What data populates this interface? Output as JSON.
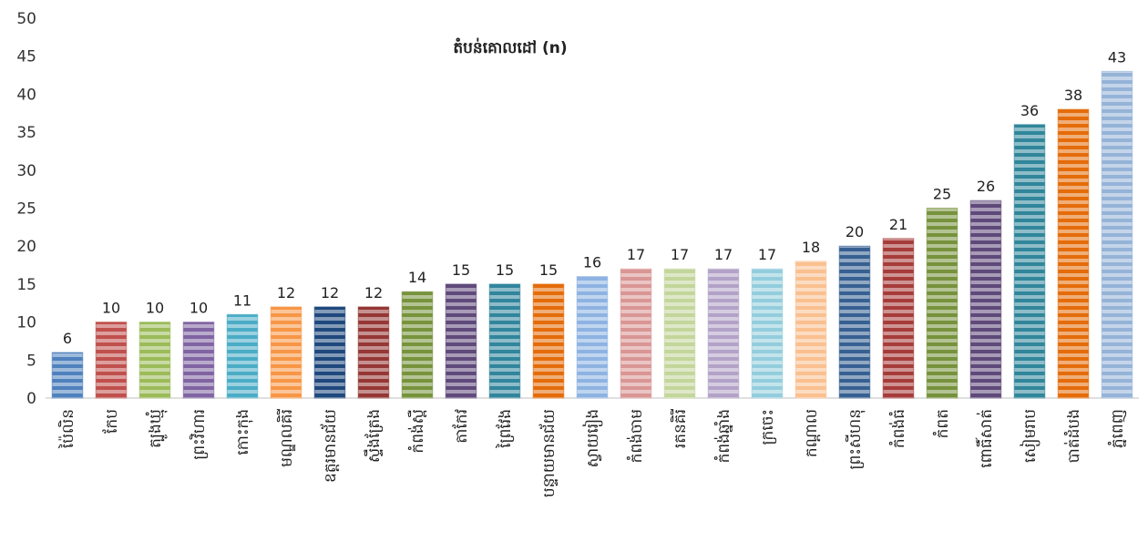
{
  "chart_data": {
    "type": "bar",
    "title": "តំបន់គោលដៅ (n)",
    "xlabel": "",
    "ylabel": "",
    "ylim": [
      0,
      50
    ],
    "yticks": [
      0,
      5,
      10,
      15,
      20,
      25,
      30,
      35,
      40,
      45,
      50
    ],
    "grid": false,
    "legend": "none",
    "categories": [
      "ប៉ៃលិន",
      "កែប",
      "ត្បូងឃ្មុំ",
      "ព្រះវិហារ",
      "កោះកុង",
      "មណ្ឌលគិរី",
      "ឧត្ដរមានជ័យ",
      "ស្ទឹងត្រែង",
      "កំពង់ស្ពឺ",
      "តាកែវ",
      "ព្រៃវែង",
      "បន្ទាយមានជ័យ",
      "ស្វាយរៀង",
      "កំពង់ចាម",
      "រតនគិរី",
      "កំពង់ឆ្នាំង",
      "ក្រចេះ",
      "កណ្ដាល",
      "ព្រះសីហនុ",
      "កំពង់ធំ",
      "កំពត",
      "ពោធិ៍សាត់",
      "សៀមរាប",
      "បាត់ដំបង",
      "ភ្នំពេញ"
    ],
    "values": [
      6,
      10,
      10,
      10,
      11,
      12,
      12,
      12,
      14,
      15,
      15,
      15,
      16,
      17,
      17,
      17,
      17,
      18,
      20,
      21,
      25,
      26,
      36,
      38,
      43
    ],
    "colors": [
      "#4f81bd",
      "#c0504d",
      "#9bbb59",
      "#8064a2",
      "#4bacc6",
      "#f79646",
      "#1f497d",
      "#953735",
      "#77933c",
      "#604a7b",
      "#31859c",
      "#e46c0a",
      "#8db3e2",
      "#d99694",
      "#c3d69b",
      "#b3a2c7",
      "#93cddd",
      "#fac090",
      "#376092",
      "#a63c3a",
      "#76923c",
      "#5f497a",
      "#31869b",
      "#e46c0a",
      "#95b3d7"
    ]
  }
}
